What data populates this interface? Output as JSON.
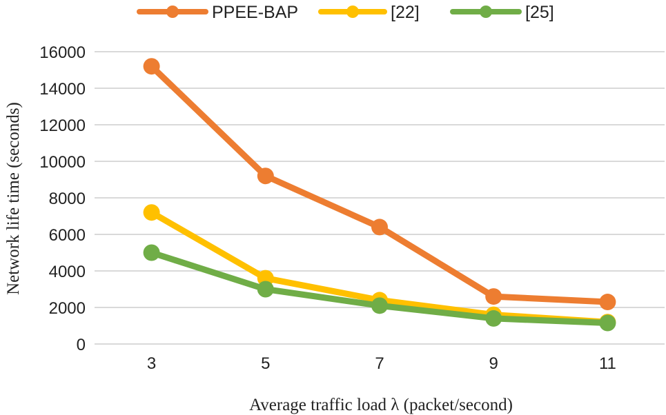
{
  "chart_data": {
    "type": "line",
    "title": "",
    "xlabel": "Average traffic load λ (packet/second)",
    "ylabel": "Network life time (seconds)",
    "categories": [
      "3",
      "5",
      "7",
      "9",
      "11"
    ],
    "ylim": [
      0,
      16000
    ],
    "yticks": [
      "0",
      "2000",
      "4000",
      "6000",
      "8000",
      "10000",
      "12000",
      "14000",
      "16000"
    ],
    "grid": true,
    "legend_position": "top",
    "series": [
      {
        "name": "PPEE-BAP",
        "color": "#ED7D31",
        "values": [
          15200,
          9200,
          6400,
          2600,
          2300
        ]
      },
      {
        "name": "[22]",
        "color": "#FFC000",
        "values": [
          7200,
          3600,
          2400,
          1600,
          1200
        ]
      },
      {
        "name": "[25]",
        "color": "#70AD47",
        "values": [
          5000,
          3000,
          2100,
          1400,
          1150
        ]
      }
    ]
  }
}
